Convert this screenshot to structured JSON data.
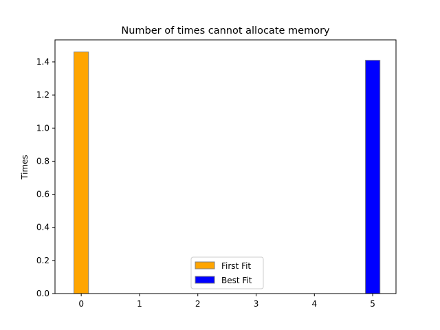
{
  "chart_data": {
    "type": "bar",
    "title": "Number of times cannot allocate memory",
    "xlabel": "",
    "ylabel": "Times",
    "xlim": [
      -0.45,
      5.4
    ],
    "ylim": [
      0,
      1.533
    ],
    "xticks": [
      "0",
      "1",
      "2",
      "3",
      "4",
      "5"
    ],
    "yticks": [
      "0.0",
      "0.2",
      "0.4",
      "0.6",
      "0.8",
      "1.0",
      "1.2",
      "1.4"
    ],
    "bar_width": 0.25,
    "bar_edge_color": "#808080",
    "grid": false,
    "legend_position": "lower center",
    "series": [
      {
        "name": "First Fit",
        "color": "#FFA500",
        "x": [
          0
        ],
        "values": [
          1.46
        ]
      },
      {
        "name": "Best Fit",
        "color": "#0000FF",
        "x": [
          5
        ],
        "values": [
          1.41
        ]
      }
    ]
  }
}
